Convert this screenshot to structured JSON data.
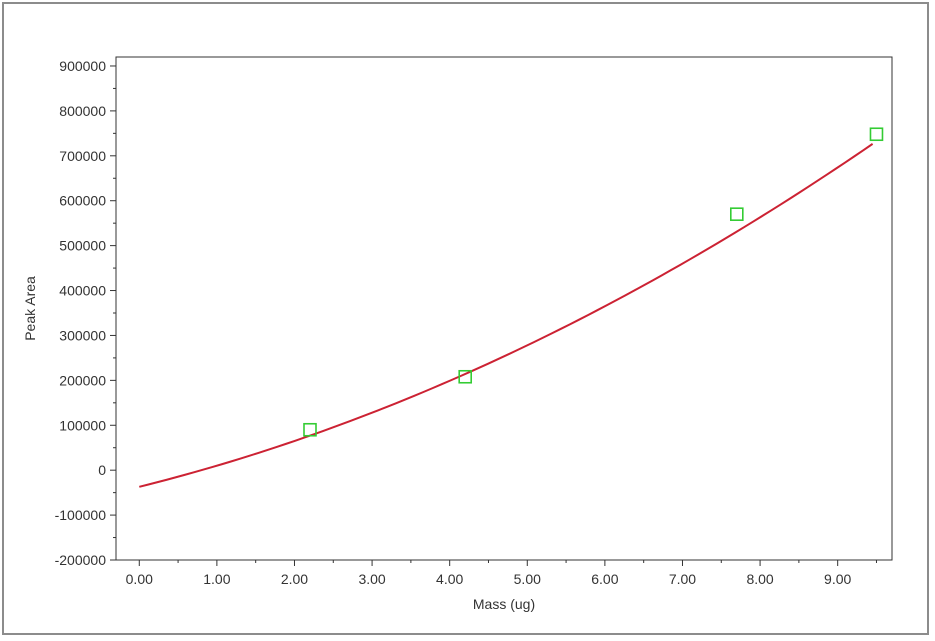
{
  "chart_data": {
    "type": "scatter",
    "xlabel": "Mass (ug)",
    "ylabel": "Peak Area",
    "xlim": [
      -0.3,
      9.7
    ],
    "ylim": [
      -200000,
      920000
    ],
    "x_ticks": [
      0.0,
      1.0,
      2.0,
      3.0,
      4.0,
      5.0,
      6.0,
      7.0,
      8.0,
      9.0
    ],
    "x_tick_labels": [
      "0.00",
      "1.00",
      "2.00",
      "3.00",
      "4.00",
      "5.00",
      "6.00",
      "7.00",
      "8.00",
      "9.00"
    ],
    "y_ticks": [
      -200000,
      -100000,
      0,
      100000,
      200000,
      300000,
      400000,
      500000,
      600000,
      700000,
      800000,
      900000
    ],
    "y_tick_labels": [
      "-200000",
      "-100000",
      "0",
      "100000",
      "200000",
      "300000",
      "400000",
      "500000",
      "600000",
      "700000",
      "800000",
      "900000"
    ],
    "grid": false,
    "series": [
      {
        "marker": "square-open",
        "color": "#33cc33",
        "x": [
          2.2,
          4.2,
          7.7,
          9.5
        ],
        "y": [
          90000,
          208000,
          570000,
          748000
        ]
      }
    ],
    "fit_curve": {
      "type": "quadratic",
      "color": "#cc2233",
      "coefficients": [
        -37000,
        43000,
        4000
      ],
      "x_range": [
        0.0,
        9.45
      ]
    }
  }
}
